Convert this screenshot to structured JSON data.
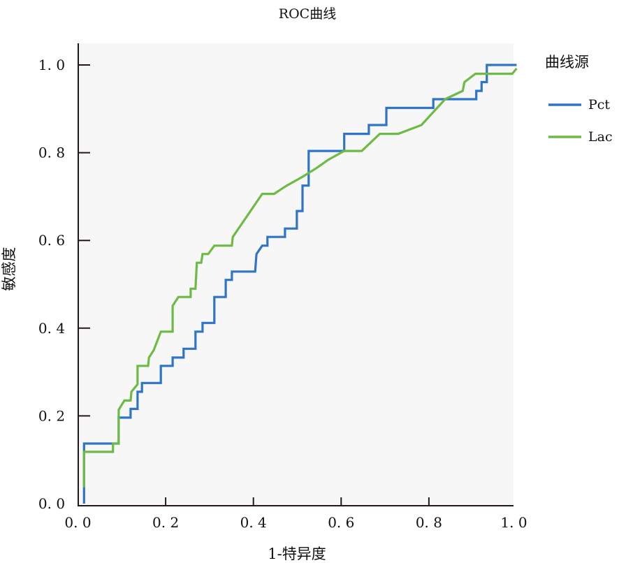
{
  "chart_data": {
    "type": "line",
    "title": "ROC曲线",
    "xlabel": "1-特异度",
    "ylabel": "敏感度",
    "xlim": [
      0,
      1
    ],
    "ylim": [
      0,
      1
    ],
    "xticks": [
      "0.0",
      "0.2",
      "0.4",
      "0.6",
      "0.8",
      "1.0"
    ],
    "yticks": [
      "0.0",
      "0.2",
      "0.4",
      "0.6",
      "0.8",
      "1.0"
    ],
    "grid": false,
    "legend": {
      "title": "曲线源",
      "placement": "right"
    },
    "series": [
      {
        "name": "Pct",
        "color": "#2f74c8",
        "points": [
          [
            0.014,
            0
          ],
          [
            0.014,
            0.137
          ],
          [
            0.093,
            0.137
          ],
          [
            0.093,
            0.196
          ],
          [
            0.12,
            0.196
          ],
          [
            0.12,
            0.216
          ],
          [
            0.136,
            0.216
          ],
          [
            0.136,
            0.255
          ],
          [
            0.146,
            0.255
          ],
          [
            0.146,
            0.275
          ],
          [
            0.189,
            0.275
          ],
          [
            0.189,
            0.314
          ],
          [
            0.216,
            0.314
          ],
          [
            0.216,
            0.333
          ],
          [
            0.241,
            0.333
          ],
          [
            0.241,
            0.353
          ],
          [
            0.268,
            0.353
          ],
          [
            0.268,
            0.392
          ],
          [
            0.284,
            0.392
          ],
          [
            0.284,
            0.412
          ],
          [
            0.311,
            0.412
          ],
          [
            0.311,
            0.471
          ],
          [
            0.337,
            0.471
          ],
          [
            0.337,
            0.51
          ],
          [
            0.351,
            0.51
          ],
          [
            0.351,
            0.529
          ],
          [
            0.404,
            0.529
          ],
          [
            0.407,
            0.569
          ],
          [
            0.42,
            0.588
          ],
          [
            0.432,
            0.588
          ],
          [
            0.432,
            0.608
          ],
          [
            0.472,
            0.608
          ],
          [
            0.472,
            0.627
          ],
          [
            0.499,
            0.627
          ],
          [
            0.499,
            0.667
          ],
          [
            0.512,
            0.667
          ],
          [
            0.512,
            0.725
          ],
          [
            0.526,
            0.725
          ],
          [
            0.526,
            0.804
          ],
          [
            0.607,
            0.804
          ],
          [
            0.607,
            0.843
          ],
          [
            0.663,
            0.843
          ],
          [
            0.663,
            0.863
          ],
          [
            0.703,
            0.863
          ],
          [
            0.703,
            0.902
          ],
          [
            0.81,
            0.902
          ],
          [
            0.81,
            0.922
          ],
          [
            0.908,
            0.922
          ],
          [
            0.908,
            0.941
          ],
          [
            0.92,
            0.941
          ],
          [
            0.92,
            0.961
          ],
          [
            0.932,
            0.961
          ],
          [
            0.932,
            1.0
          ],
          [
            1.0,
            1.0
          ]
        ]
      },
      {
        "name": "Lac",
        "color": "#6dbb44",
        "points": [
          [
            0.014,
            0.037
          ],
          [
            0.014,
            0.118
          ],
          [
            0.08,
            0.118
          ],
          [
            0.08,
            0.137
          ],
          [
            0.093,
            0.137
          ],
          [
            0.093,
            0.214
          ],
          [
            0.106,
            0.235
          ],
          [
            0.12,
            0.235
          ],
          [
            0.122,
            0.255
          ],
          [
            0.136,
            0.272
          ],
          [
            0.136,
            0.314
          ],
          [
            0.16,
            0.314
          ],
          [
            0.162,
            0.333
          ],
          [
            0.173,
            0.35
          ],
          [
            0.189,
            0.392
          ],
          [
            0.216,
            0.392
          ],
          [
            0.216,
            0.451
          ],
          [
            0.229,
            0.471
          ],
          [
            0.257,
            0.471
          ],
          [
            0.257,
            0.49
          ],
          [
            0.268,
            0.49
          ],
          [
            0.271,
            0.549
          ],
          [
            0.281,
            0.549
          ],
          [
            0.284,
            0.569
          ],
          [
            0.297,
            0.569
          ],
          [
            0.311,
            0.588
          ],
          [
            0.351,
            0.588
          ],
          [
            0.353,
            0.608
          ],
          [
            0.42,
            0.706
          ],
          [
            0.447,
            0.706
          ],
          [
            0.476,
            0.725
          ],
          [
            0.512,
            0.745
          ],
          [
            0.544,
            0.765
          ],
          [
            0.571,
            0.784
          ],
          [
            0.607,
            0.804
          ],
          [
            0.647,
            0.804
          ],
          [
            0.688,
            0.843
          ],
          [
            0.73,
            0.843
          ],
          [
            0.783,
            0.863
          ],
          [
            0.837,
            0.922
          ],
          [
            0.877,
            0.941
          ],
          [
            0.881,
            0.961
          ],
          [
            0.906,
            0.98
          ],
          [
            0.99,
            0.98
          ],
          [
            1.0,
            0.992
          ]
        ]
      }
    ]
  }
}
